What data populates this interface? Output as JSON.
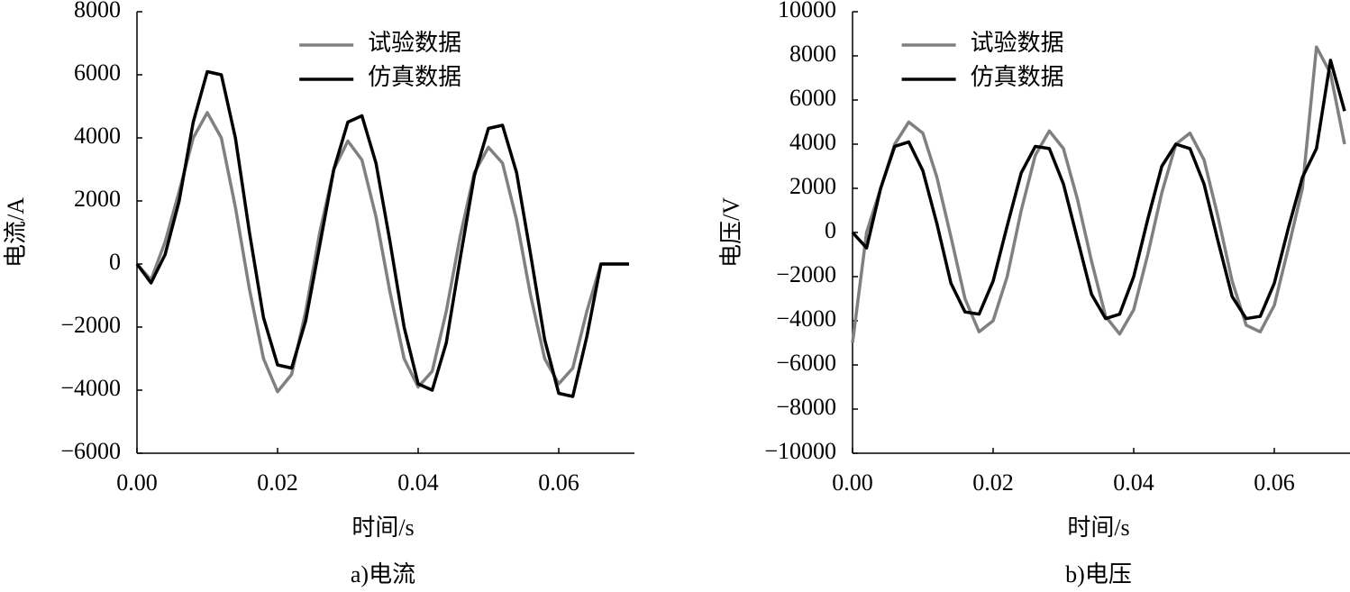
{
  "chart_data": [
    {
      "type": "line",
      "caption": "a)电流",
      "xlabel": "时间/s",
      "ylabel": "电流/A",
      "xlim": [
        0,
        0.07
      ],
      "ylim": [
        -6000,
        8000
      ],
      "xticks": [
        {
          "value": 0,
          "label": "0.00"
        },
        {
          "value": 0.02,
          "label": "0.02"
        },
        {
          "value": 0.04,
          "label": "0.04"
        },
        {
          "value": 0.06,
          "label": "0.06"
        }
      ],
      "yticks": [
        {
          "value": -6000,
          "label": "−6000"
        },
        {
          "value": -4000,
          "label": "−4000"
        },
        {
          "value": -2000,
          "label": "−2000"
        },
        0,
        2000,
        4000,
        6000,
        8000
      ],
      "legend": "upper center",
      "x": [
        0,
        0.002,
        0.004,
        0.006,
        0.008,
        0.01,
        0.012,
        0.014,
        0.016,
        0.018,
        0.02,
        0.022,
        0.024,
        0.026,
        0.028,
        0.03,
        0.032,
        0.034,
        0.036,
        0.038,
        0.04,
        0.042,
        0.044,
        0.046,
        0.048,
        0.05,
        0.052,
        0.054,
        0.056,
        0.058,
        0.06,
        0.062,
        0.064,
        0.066,
        0.068,
        0.07
      ],
      "series": [
        {
          "name": "试验数据",
          "color": "#808080",
          "values": [
            0,
            -500,
            700,
            2300,
            4000,
            4800,
            4000,
            1800,
            -800,
            -3000,
            -4050,
            -3500,
            -1500,
            1000,
            3000,
            3900,
            3300,
            1500,
            -900,
            -3000,
            -3900,
            -3400,
            -1500,
            900,
            2900,
            3700,
            3200,
            1400,
            -1000,
            -3000,
            -3800,
            -3300,
            -1500,
            0,
            0,
            0
          ]
        },
        {
          "name": "仿真数据",
          "color": "#000000",
          "values": [
            0,
            -600,
            300,
            2000,
            4500,
            6100,
            6000,
            4000,
            1000,
            -1700,
            -3200,
            -3300,
            -1800,
            600,
            3000,
            4500,
            4700,
            3200,
            700,
            -2000,
            -3800,
            -4000,
            -2500,
            200,
            2800,
            4300,
            4400,
            2900,
            300,
            -2400,
            -4100,
            -4200,
            -2300,
            0,
            0,
            0
          ]
        }
      ]
    },
    {
      "type": "line",
      "caption": "b)电压",
      "xlabel": "时间/s",
      "ylabel": "电压/V",
      "xlim": [
        0,
        0.07
      ],
      "ylim": [
        -10000,
        10000
      ],
      "xticks": [
        {
          "value": 0,
          "label": "0.00"
        },
        {
          "value": 0.02,
          "label": "0.02"
        },
        {
          "value": 0.04,
          "label": "0.04"
        },
        {
          "value": 0.06,
          "label": "0.06"
        }
      ],
      "yticks": [
        {
          "value": -10000,
          "label": "−10000"
        },
        {
          "value": -8000,
          "label": "−8000"
        },
        {
          "value": -6000,
          "label": "−6000"
        },
        {
          "value": -4000,
          "label": "−4000"
        },
        {
          "value": -2000,
          "label": "−2000"
        },
        0,
        2000,
        4000,
        6000,
        8000,
        10000
      ],
      "legend": "upper left",
      "x": [
        0,
        0.002,
        0.004,
        0.006,
        0.008,
        0.01,
        0.012,
        0.014,
        0.016,
        0.018,
        0.02,
        0.022,
        0.024,
        0.026,
        0.028,
        0.03,
        0.032,
        0.034,
        0.036,
        0.038,
        0.04,
        0.042,
        0.044,
        0.046,
        0.048,
        0.05,
        0.052,
        0.054,
        0.056,
        0.058,
        0.06,
        0.062,
        0.064,
        0.066,
        0.068,
        0.07
      ],
      "series": [
        {
          "name": "试验数据",
          "color": "#808080",
          "values": [
            -5000,
            0,
            2000,
            4000,
            5000,
            4500,
            2500,
            -200,
            -3000,
            -4500,
            -4000,
            -2000,
            1000,
            3500,
            4600,
            3800,
            1500,
            -1300,
            -3800,
            -4600,
            -3500,
            -1000,
            1800,
            4000,
            4500,
            3300,
            700,
            -2200,
            -4200,
            -4500,
            -3300,
            -700,
            2000,
            8400,
            7200,
            4000
          ]
        },
        {
          "name": "仿真数据",
          "color": "#000000",
          "values": [
            0,
            -700,
            2000,
            3900,
            4100,
            2800,
            400,
            -2300,
            -3600,
            -3700,
            -2200,
            300,
            2700,
            3900,
            3800,
            2200,
            -300,
            -2800,
            -3900,
            -3700,
            -2000,
            600,
            3000,
            4000,
            3800,
            2200,
            -400,
            -2900,
            -3900,
            -3800,
            -2300,
            200,
            2500,
            3800,
            7800,
            5500
          ]
        }
      ]
    }
  ]
}
